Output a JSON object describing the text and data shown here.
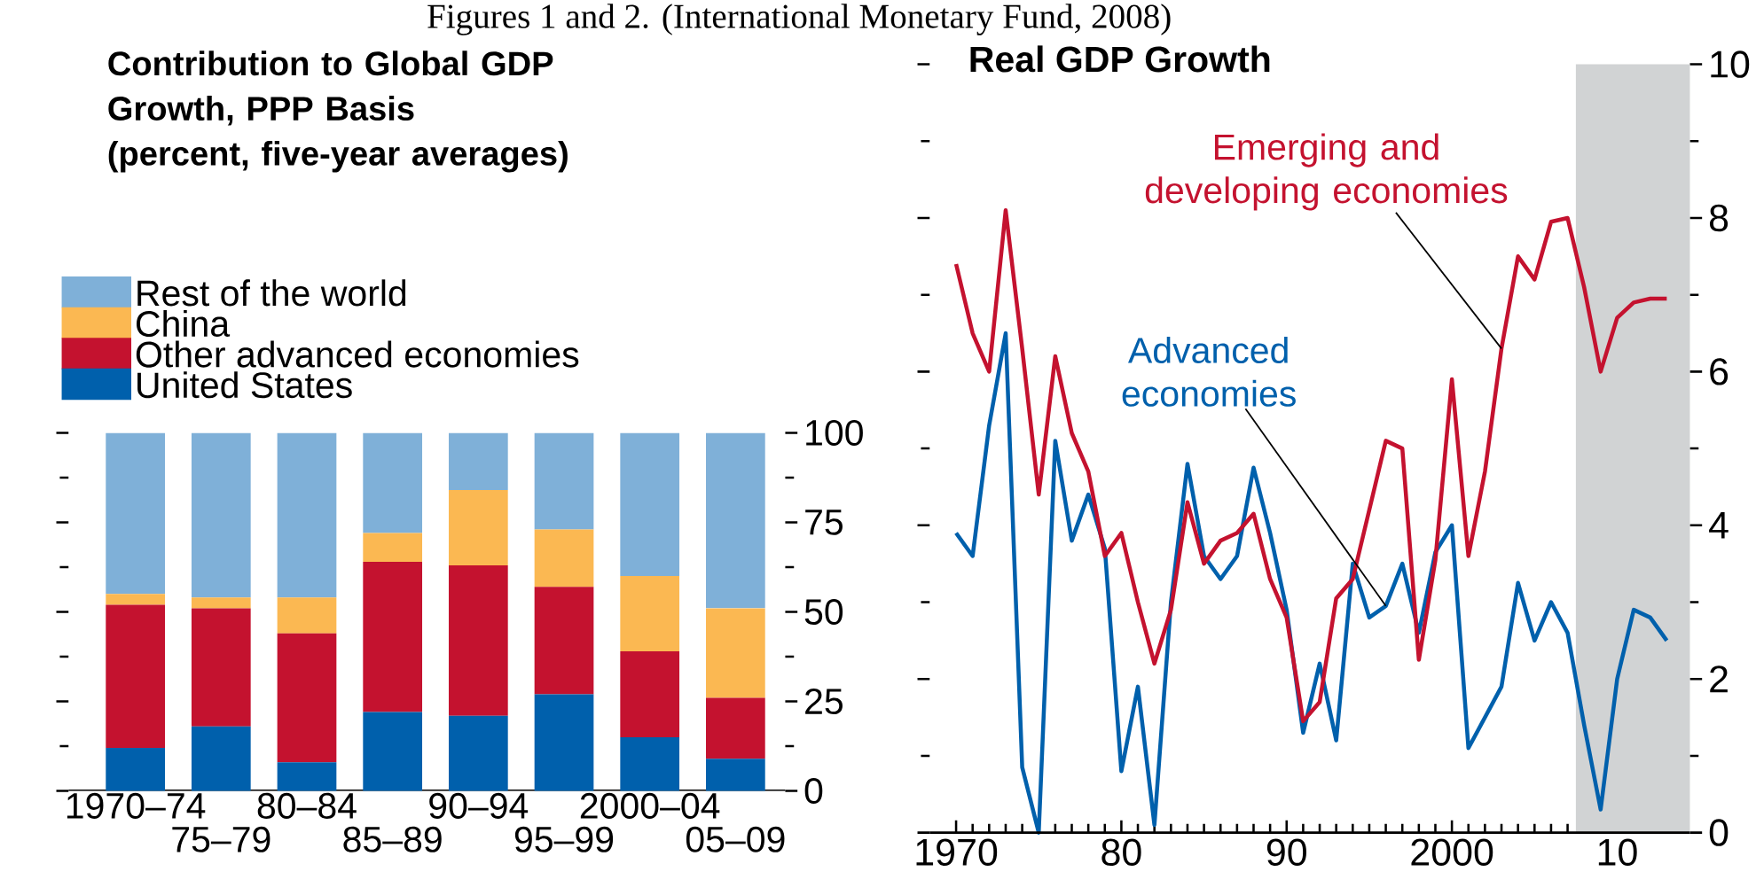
{
  "chart_data": [
    {
      "type": "bar",
      "title": "Contribution to Global GDP Growth, PPP Basis",
      "subtitle": "(percent, five-year averages)",
      "annotations": [
        "Figures 1 and 2. (International Monetary Fund, 2008)"
      ],
      "categories": [
        "1970–74",
        "75–79",
        "80–84",
        "85–89",
        "90–94",
        "95–99",
        "2000–04",
        "05–09"
      ],
      "stacked": true,
      "legend": "top left",
      "ylim": [
        0,
        100
      ],
      "yticks": [
        0,
        25,
        50,
        75,
        100
      ],
      "series": [
        {
          "name": "United States",
          "color": "#0060ac",
          "values": [
            12,
            18,
            8,
            22,
            21,
            27,
            15,
            9
          ]
        },
        {
          "name": "Other advanced economies",
          "color": "#c4122f",
          "values": [
            40,
            33,
            36,
            42,
            42,
            30,
            24,
            17
          ]
        },
        {
          "name": "China",
          "color": "#fbb852",
          "values": [
            3,
            3,
            10,
            8,
            21,
            16,
            21,
            25
          ]
        },
        {
          "name": "Rest of the world",
          "color": "#7fb0d8",
          "values": [
            45,
            46,
            46,
            28,
            16,
            27,
            40,
            49
          ]
        }
      ]
    },
    {
      "type": "line",
      "title": "Real GDP Growth",
      "xlim": [
        1968.4,
        2014.4
      ],
      "ylim": [
        0,
        10
      ],
      "xticks": [
        1970,
        {
          "value": 1980,
          "label": "80"
        },
        {
          "value": 1990,
          "label": "90"
        },
        2000,
        {
          "value": 2010,
          "label": "10"
        }
      ],
      "yticks": [
        0,
        2,
        4,
        6,
        8,
        10
      ],
      "bands": [
        {
          "axis": "x",
          "from": 2007.5,
          "to": 2014.4,
          "color": "#d1d3d4"
        }
      ],
      "x": [
        1970,
        1971,
        1972,
        1973,
        1974,
        1975,
        1976,
        1977,
        1978,
        1979,
        1980,
        1981,
        1982,
        1983,
        1984,
        1985,
        1986,
        1987,
        1988,
        1989,
        1990,
        1991,
        1992,
        1993,
        1994,
        1995,
        1996,
        1997,
        1998,
        1999,
        2000,
        2001,
        2002,
        2003,
        2004,
        2005,
        2006,
        2007,
        2008,
        2009,
        2010,
        2011,
        2012,
        2013
      ],
      "series": [
        {
          "name": "Advanced economies",
          "color": "#0060ac",
          "values": [
            3.9,
            3.6,
            5.3,
            6.5,
            0.85,
            0,
            5.1,
            3.8,
            4.4,
            3.7,
            0.8,
            1.9,
            0.1,
            3.0,
            4.8,
            3.6,
            3.3,
            3.6,
            4.75,
            3.9,
            2.9,
            1.3,
            2.2,
            1.2,
            3.5,
            2.8,
            2.95,
            3.5,
            2.6,
            3.65,
            4.0,
            1.1,
            1.5,
            1.9,
            3.25,
            2.5,
            3.0,
            2.6,
            1.4,
            0.3,
            2.0,
            2.9,
            2.8,
            2.5
          ]
        },
        {
          "name": "Emerging and developing economies",
          "color": "#c4122f",
          "values": [
            7.4,
            6.5,
            6.0,
            8.1,
            6.3,
            4.4,
            6.2,
            5.2,
            4.7,
            3.6,
            3.9,
            3.0,
            2.2,
            2.9,
            4.3,
            3.5,
            3.8,
            3.9,
            4.15,
            3.3,
            2.8,
            1.45,
            1.7,
            3.05,
            3.3,
            4.2,
            5.1,
            5.0,
            2.25,
            3.55,
            5.9,
            3.6,
            4.7,
            6.3,
            7.5,
            7.2,
            7.95,
            8.0,
            7.1,
            6.0,
            6.7,
            6.9,
            6.95,
            6.95
          ]
        }
      ]
    }
  ]
}
